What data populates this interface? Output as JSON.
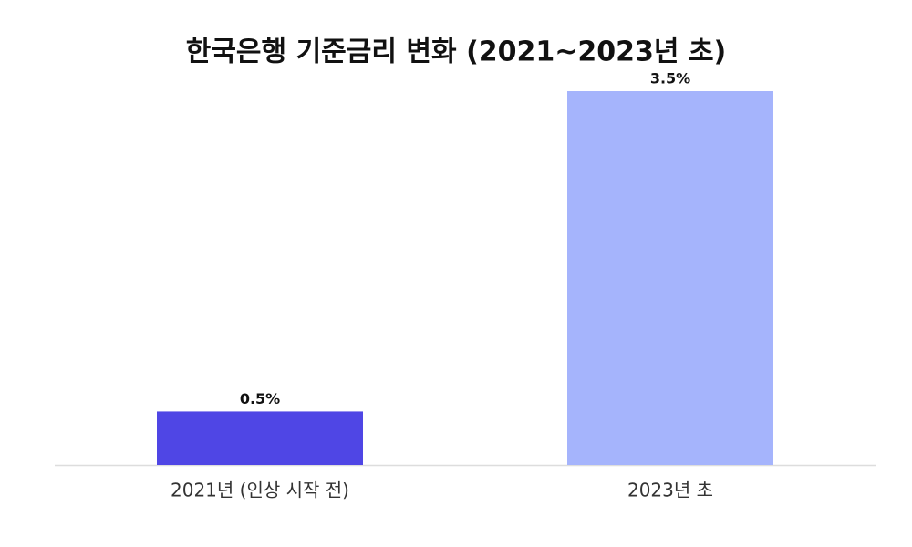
{
  "chart_data": {
    "type": "bar",
    "title": "한국은행 기준금리 변화 (2021~2023년 초)",
    "categories": [
      "2021년 (인상 시작 전)",
      "2023년 초"
    ],
    "values": [
      0.5,
      3.5
    ],
    "value_labels": [
      "0.5%",
      "3.5%"
    ],
    "colors": [
      "#4f46e5",
      "#a5b4fc"
    ],
    "ylim": [
      0,
      3.5
    ]
  }
}
